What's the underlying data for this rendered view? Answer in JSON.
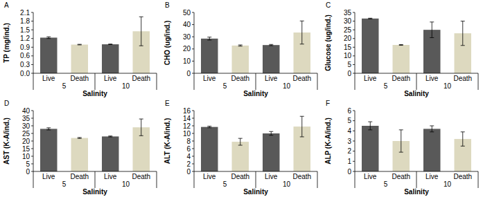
{
  "chart_data": [
    {
      "type": "bar",
      "title": "A",
      "y_label": "TP (mg/ind.)",
      "x_label": "Salinity",
      "categories": [
        "Live",
        "Death",
        "Live",
        "Death"
      ],
      "group_labels": [
        "5",
        "10"
      ],
      "values": [
        1.23,
        0.99,
        1.0,
        1.45
      ],
      "errors": [
        0.03,
        0.01,
        0.01,
        0.5
      ],
      "colors": [
        "#595959",
        "#ddd9bf",
        "#595959",
        "#ddd9bf"
      ],
      "ylim": [
        0,
        2.1
      ],
      "yticks": [
        {
          "value": 0,
          "label": "0.0"
        },
        0.3,
        0.6,
        0.9,
        1.2,
        1.5,
        1.8,
        2.1
      ]
    },
    {
      "type": "bar",
      "title": "B",
      "y_label": "CHO (ug/ind.)",
      "x_label": "Salinity",
      "categories": [
        "Live",
        "Death",
        "Live",
        "Death"
      ],
      "group_labels": [
        "5",
        "10"
      ],
      "values": [
        28.5,
        22.8,
        23.2,
        33.5
      ],
      "errors": [
        1.2,
        0.5,
        0.5,
        9.5
      ],
      "colors": [
        "#595959",
        "#ddd9bf",
        "#595959",
        "#ddd9bf"
      ],
      "ylim": [
        0,
        50
      ],
      "yticks": [
        0,
        10,
        20,
        30,
        40,
        50
      ]
    },
    {
      "type": "bar",
      "title": "C",
      "y_label": "Glucose (ug/ind.)",
      "x_label": "Salinity",
      "categories": [
        "Live",
        "Death",
        "Live",
        "Death"
      ],
      "group_labels": [
        "5",
        "10"
      ],
      "values": [
        31.5,
        16.3,
        25,
        23
      ],
      "errors": [
        0.2,
        0.2,
        4.5,
        7
      ],
      "colors": [
        "#595959",
        "#ddd9bf",
        "#595959",
        "#ddd9bf"
      ],
      "ylim": [
        0,
        35
      ],
      "yticks": [
        0,
        5,
        10,
        15,
        20,
        25,
        30,
        35
      ]
    },
    {
      "type": "bar",
      "title": "D",
      "y_label": "AST (K-A/ind.)",
      "x_label": "Salinity",
      "categories": [
        "Live",
        "Death",
        "Live",
        "Death"
      ],
      "group_labels": [
        "5",
        "10"
      ],
      "values": [
        28,
        22,
        23,
        29
      ],
      "errors": [
        0.7,
        0.3,
        0.3,
        5.5
      ],
      "colors": [
        "#595959",
        "#ddd9bf",
        "#595959",
        "#ddd9bf"
      ],
      "ylim": [
        0,
        40
      ],
      "yticks": [
        0,
        5,
        10,
        15,
        20,
        25,
        30,
        35,
        40
      ]
    },
    {
      "type": "bar",
      "title": "E",
      "y_label": "ALT (K-A/ind.)",
      "x_label": "Salinity",
      "categories": [
        "Live",
        "Death",
        "Live",
        "Death"
      ],
      "group_labels": [
        "5",
        "10"
      ],
      "values": [
        11.7,
        7.8,
        10,
        11.8
      ],
      "errors": [
        0.2,
        0.9,
        0.5,
        2.7
      ],
      "colors": [
        "#595959",
        "#ddd9bf",
        "#595959",
        "#ddd9bf"
      ],
      "ylim": [
        0,
        16
      ],
      "yticks": [
        0,
        2,
        4,
        6,
        8,
        10,
        12,
        14,
        16
      ]
    },
    {
      "type": "bar",
      "title": "F",
      "y_label": "ALP (K-A/ind.)",
      "x_label": "Salinity",
      "categories": [
        "Live",
        "Death",
        "Live",
        "Death"
      ],
      "group_labels": [
        "5",
        "10"
      ],
      "values": [
        4.5,
        3.0,
        4.2,
        3.2
      ],
      "errors": [
        0.4,
        1.1,
        0.3,
        0.7
      ],
      "colors": [
        "#595959",
        "#ddd9bf",
        "#595959",
        "#ddd9bf"
      ],
      "ylim": [
        0,
        6
      ],
      "yticks": [
        0,
        1,
        2,
        3,
        4,
        5,
        6
      ]
    }
  ]
}
